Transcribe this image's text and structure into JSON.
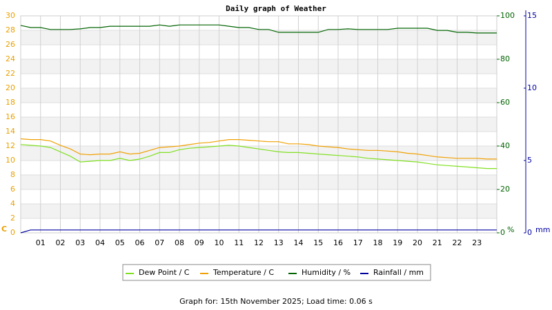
{
  "chart_data": {
    "type": "line",
    "title": "Daily graph of Weather",
    "x": [
      0,
      0.5,
      1,
      1.5,
      2,
      2.5,
      3,
      3.5,
      4,
      4.5,
      5,
      5.5,
      6,
      6.5,
      7,
      7.5,
      8,
      8.5,
      9,
      9.5,
      10,
      10.5,
      11,
      11.5,
      12,
      12.5,
      13,
      13.5,
      14,
      14.5,
      15,
      15.5,
      16,
      16.5,
      17,
      17.5,
      18,
      18.5,
      19,
      19.5,
      20,
      20.5,
      21,
      21.5,
      22,
      22.5,
      23,
      23.5,
      24
    ],
    "xlim": [
      0,
      24
    ],
    "xticks": [
      {
        "value": 1,
        "label": "01"
      },
      {
        "value": 2,
        "label": "02"
      },
      {
        "value": 3,
        "label": "03"
      },
      {
        "value": 4,
        "label": "04"
      },
      {
        "value": 5,
        "label": "05"
      },
      {
        "value": 6,
        "label": "06"
      },
      {
        "value": 7,
        "label": "07"
      },
      {
        "value": 8,
        "label": "08"
      },
      {
        "value": 9,
        "label": "09"
      },
      10,
      11,
      12,
      13,
      14,
      15,
      16,
      17,
      18,
      19,
      20,
      21,
      22,
      23
    ],
    "ylim": [
      0,
      30
    ],
    "yticks": [
      0,
      2,
      4,
      6,
      8,
      10,
      12,
      14,
      16,
      18,
      20,
      22,
      24,
      26,
      28,
      30
    ],
    "y_label": "C",
    "y2lim": [
      0,
      100
    ],
    "y2ticks": [
      0,
      20,
      40,
      60,
      80,
      100
    ],
    "y2_label": "%",
    "y3lim": [
      0,
      15
    ],
    "y3ticks": [
      0,
      5,
      10,
      15
    ],
    "y3_label": "mm",
    "grid": true,
    "series": [
      {
        "name": "Dew Point / C",
        "color": "#80e020",
        "axis": "y",
        "values": [
          12.2,
          12.1,
          12.0,
          11.8,
          11.2,
          10.6,
          9.8,
          9.9,
          10.0,
          10.0,
          10.3,
          10.0,
          10.2,
          10.6,
          11.1,
          11.1,
          11.5,
          11.7,
          11.8,
          11.9,
          12.0,
          12.1,
          12.0,
          11.8,
          11.6,
          11.4,
          11.2,
          11.1,
          11.1,
          11.0,
          10.9,
          10.8,
          10.7,
          10.6,
          10.5,
          10.3,
          10.2,
          10.1,
          10.0,
          9.9,
          9.8,
          9.6,
          9.4,
          9.3,
          9.2,
          9.1,
          9.0,
          8.9,
          8.9
        ]
      },
      {
        "name": "Temperature / C",
        "color": "#f0a000",
        "axis": "y",
        "values": [
          13.0,
          12.9,
          12.9,
          12.7,
          12.1,
          11.6,
          10.9,
          10.8,
          10.9,
          10.9,
          11.2,
          10.9,
          11.0,
          11.4,
          11.8,
          11.9,
          12.0,
          12.2,
          12.4,
          12.5,
          12.7,
          12.9,
          12.9,
          12.8,
          12.7,
          12.6,
          12.6,
          12.3,
          12.3,
          12.2,
          12.0,
          11.9,
          11.8,
          11.6,
          11.5,
          11.4,
          11.4,
          11.3,
          11.2,
          11.0,
          10.9,
          10.7,
          10.5,
          10.4,
          10.3,
          10.3,
          10.3,
          10.2,
          10.2
        ]
      },
      {
        "name": "Humidity / %",
        "color": "#006400",
        "axis": "y2",
        "values": [
          95.6,
          94.6,
          94.6,
          93.7,
          93.7,
          93.7,
          94.0,
          94.6,
          94.6,
          95.2,
          95.2,
          95.2,
          95.2,
          95.2,
          95.8,
          95.2,
          95.8,
          95.8,
          95.8,
          95.8,
          95.8,
          95.2,
          94.6,
          94.6,
          93.7,
          93.7,
          92.4,
          92.4,
          92.4,
          92.4,
          92.4,
          93.7,
          93.7,
          94.0,
          93.7,
          93.7,
          93.7,
          93.7,
          94.3,
          94.3,
          94.3,
          94.3,
          93.3,
          93.3,
          92.4,
          92.4,
          92.1,
          92.1,
          92.1
        ]
      },
      {
        "name": "Rainfall / mm",
        "color": "#0000a0",
        "axis": "y3",
        "values": [
          0,
          0.2,
          0.2,
          0.2,
          0.2,
          0.2,
          0.2,
          0.2,
          0.2,
          0.2,
          0.2,
          0.2,
          0.2,
          0.2,
          0.2,
          0.2,
          0.2,
          0.2,
          0.2,
          0.2,
          0.2,
          0.2,
          0.2,
          0.2,
          0.2,
          0.2,
          0.2,
          0.2,
          0.2,
          0.2,
          0.2,
          0.2,
          0.2,
          0.2,
          0.2,
          0.2,
          0.2,
          0.2,
          0.2,
          0.2,
          0.2,
          0.2,
          0.2,
          0.2,
          0.2,
          0.2,
          0.2,
          0.2,
          0.2
        ]
      }
    ],
    "footer": "Graph for: 15th November 2025; Load time: 0.06 s"
  }
}
